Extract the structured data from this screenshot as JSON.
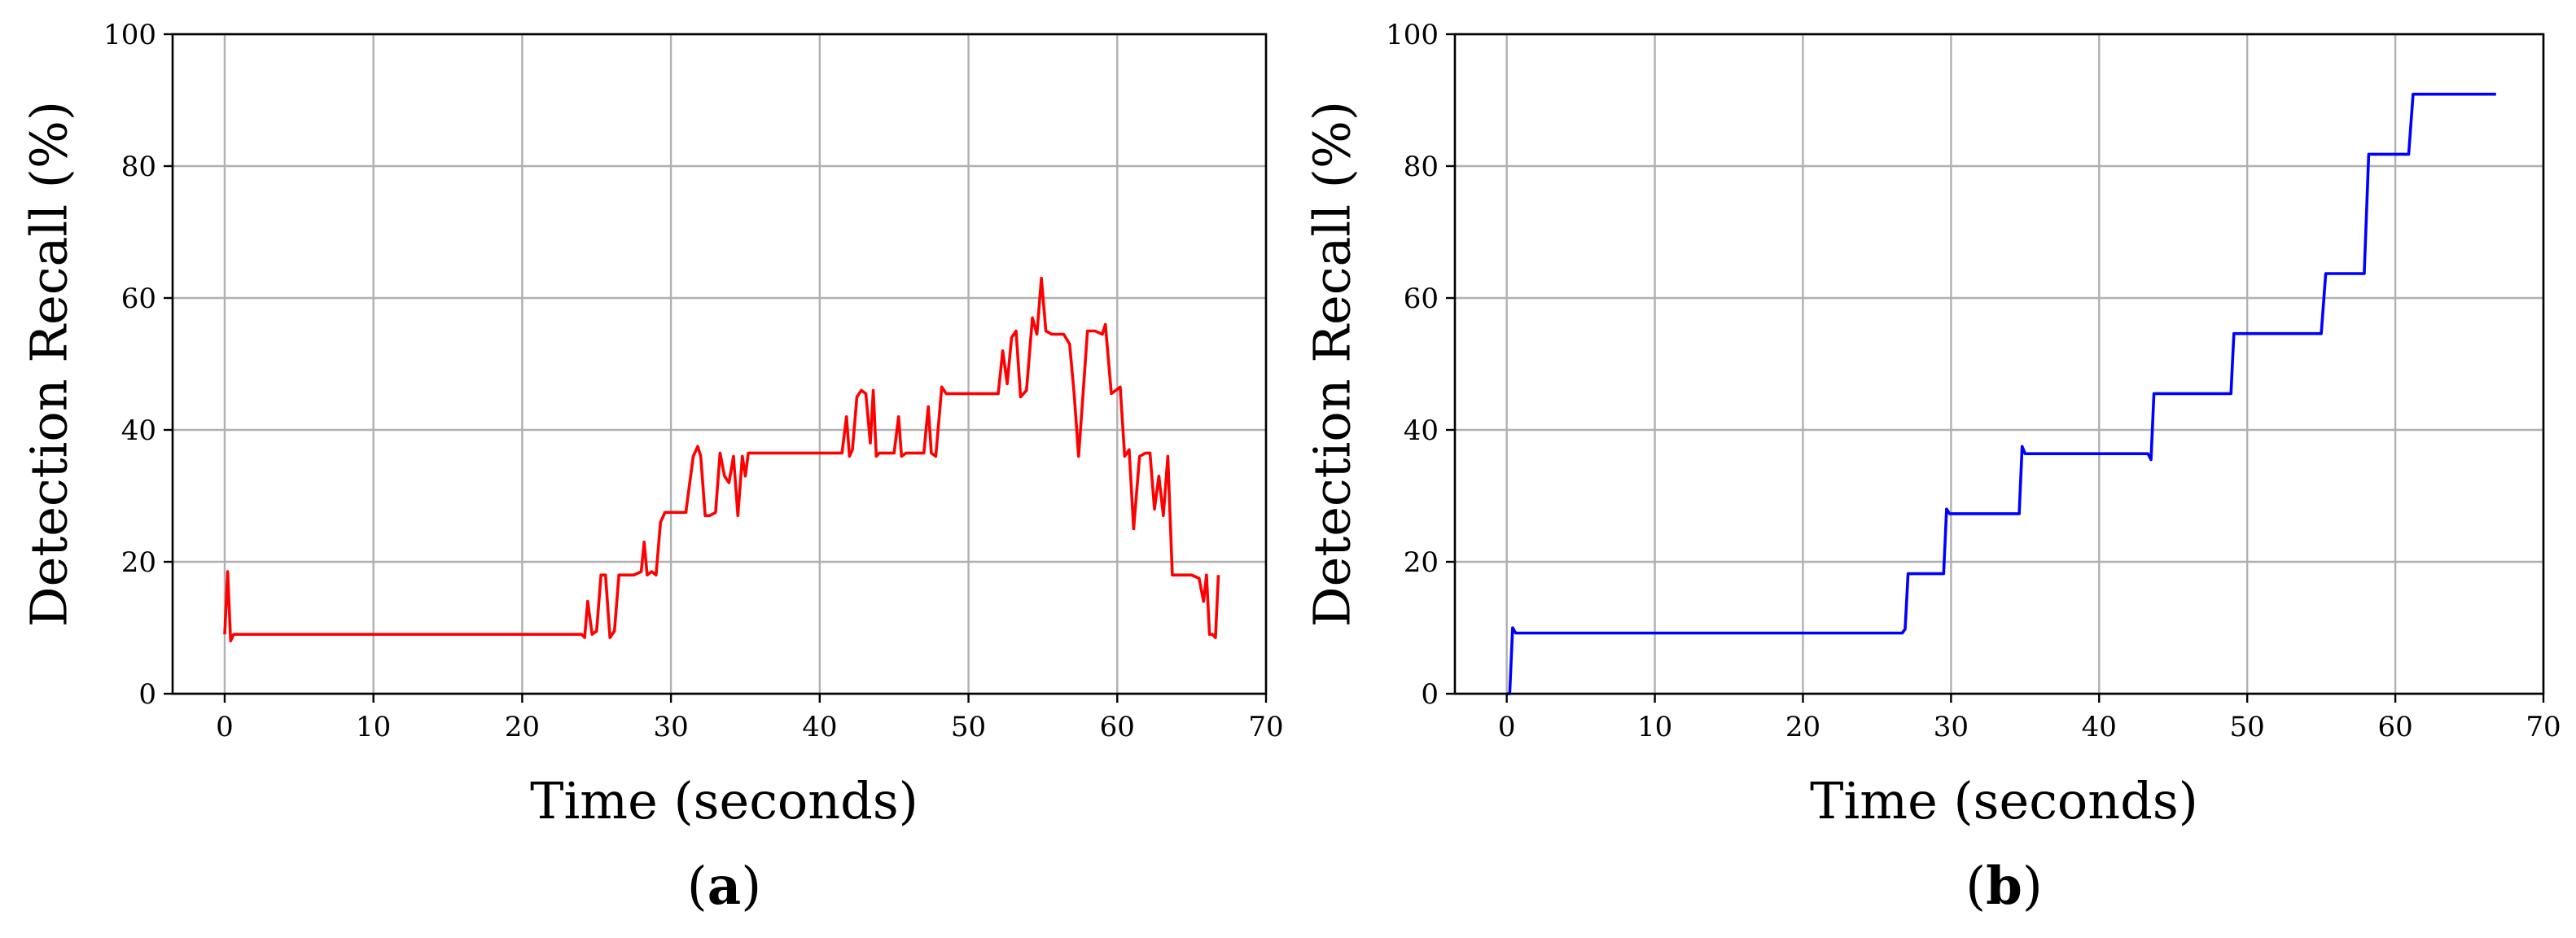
{
  "chart_data": [
    {
      "type": "line",
      "panel": "(a)",
      "panel_letter": "a",
      "xlabel": "Time (seconds)",
      "ylabel": "Detection Recall (%)",
      "xlim": [
        -3.5,
        70
      ],
      "ylim": [
        0,
        100
      ],
      "xticks": [
        0,
        10,
        20,
        30,
        40,
        50,
        60,
        70
      ],
      "yticks": [
        0,
        20,
        40,
        60,
        80,
        100
      ],
      "grid": true,
      "color": "#ff0000",
      "series": [
        {
          "x": [
            0,
            0.2,
            0.4,
            0.6,
            24,
            24.2,
            24.4,
            24.7,
            25,
            25.3,
            25.6,
            25.9,
            26.2,
            26.5,
            26.8,
            27.1,
            27.5,
            28,
            28.2,
            28.4,
            28.7,
            29,
            29.3,
            29.6,
            30,
            30.5,
            31,
            31.5,
            31.8,
            32,
            32.3,
            32.6,
            33,
            33.3,
            33.6,
            33.9,
            34.2,
            34.5,
            34.8,
            35,
            35.2,
            35.5,
            36,
            37,
            38,
            40,
            41.5,
            41.8,
            42,
            42.2,
            42.5,
            42.8,
            43.1,
            43.4,
            43.6,
            43.8,
            44,
            44.5,
            45,
            45.3,
            45.5,
            45.8,
            46.2,
            47,
            47.3,
            47.5,
            47.8,
            48.2,
            48.5,
            49,
            50,
            51,
            51.5,
            52,
            52.3,
            52.6,
            52.9,
            53.2,
            53.5,
            53.9,
            54.3,
            54.6,
            54.9,
            55.2,
            55.6,
            56,
            56.4,
            56.8,
            57.1,
            57.4,
            57.7,
            58,
            58.5,
            59,
            59.2,
            59.6,
            59.9,
            60.2,
            60.5,
            60.8,
            61.1,
            61.5,
            61.9,
            62.2,
            62.5,
            62.8,
            63.1,
            63.4,
            63.7,
            64,
            64.5,
            65,
            65.5,
            65.8,
            66,
            66.2,
            66.4,
            66.6,
            66.8
          ],
          "y": [
            9,
            18.5,
            8,
            9,
            9,
            8.5,
            14,
            9,
            9.5,
            18,
            18,
            8.5,
            9.5,
            18,
            18,
            18,
            18,
            18.5,
            23,
            18,
            18.5,
            18,
            26,
            27.5,
            27.5,
            27.5,
            27.5,
            36,
            37.5,
            36,
            27,
            27,
            27.5,
            36.5,
            33,
            32,
            36,
            27,
            36,
            33,
            36.5,
            36.5,
            36.5,
            36.5,
            36.5,
            36.5,
            36.5,
            42,
            36,
            37,
            45,
            46,
            45.5,
            38,
            46,
            36,
            36.5,
            36.5,
            36.5,
            42,
            36,
            36.5,
            36.5,
            36.5,
            43.5,
            36.5,
            36,
            46.5,
            45.5,
            45.5,
            45.5,
            45.5,
            45.5,
            45.5,
            52,
            47,
            54,
            55,
            45,
            46,
            57,
            54.5,
            63,
            55,
            54.5,
            54.5,
            54.5,
            53,
            45.5,
            36,
            45.5,
            55,
            55,
            54.5,
            56,
            45.5,
            46,
            46.5,
            36,
            37,
            25,
            36,
            36.5,
            36.5,
            28,
            33,
            27,
            36,
            18,
            18,
            18,
            18,
            17.5,
            14,
            18,
            9,
            9,
            8.5,
            18
          ]
        }
      ]
    },
    {
      "type": "line",
      "panel": "(b)",
      "panel_letter": "b",
      "xlabel": "Time (seconds)",
      "ylabel": "Detection Recall (%)",
      "xlim": [
        -3.5,
        70
      ],
      "ylim": [
        0,
        100
      ],
      "xticks": [
        0,
        10,
        20,
        30,
        40,
        50,
        60,
        70
      ],
      "yticks": [
        0,
        20,
        40,
        60,
        80,
        100
      ],
      "grid": true,
      "color": "#0000ff",
      "series": [
        {
          "x": [
            0,
            0.2,
            0.4,
            0.6,
            1,
            26.7,
            26.9,
            27.1,
            29.5,
            29.7,
            29.9,
            34.6,
            34.8,
            35,
            43.3,
            43.5,
            43.7,
            48.9,
            49.1,
            55,
            55.3,
            57.9,
            58.2,
            60.9,
            61.2,
            66.8
          ],
          "y": [
            0,
            0,
            10,
            9.2,
            9.2,
            9.2,
            9.8,
            18.2,
            18.2,
            28,
            27.3,
            27.3,
            37.5,
            36.4,
            36.4,
            35.5,
            45.5,
            45.5,
            54.6,
            54.6,
            63.7,
            63.7,
            81.8,
            81.8,
            90.9,
            90.9
          ]
        }
      ]
    }
  ]
}
